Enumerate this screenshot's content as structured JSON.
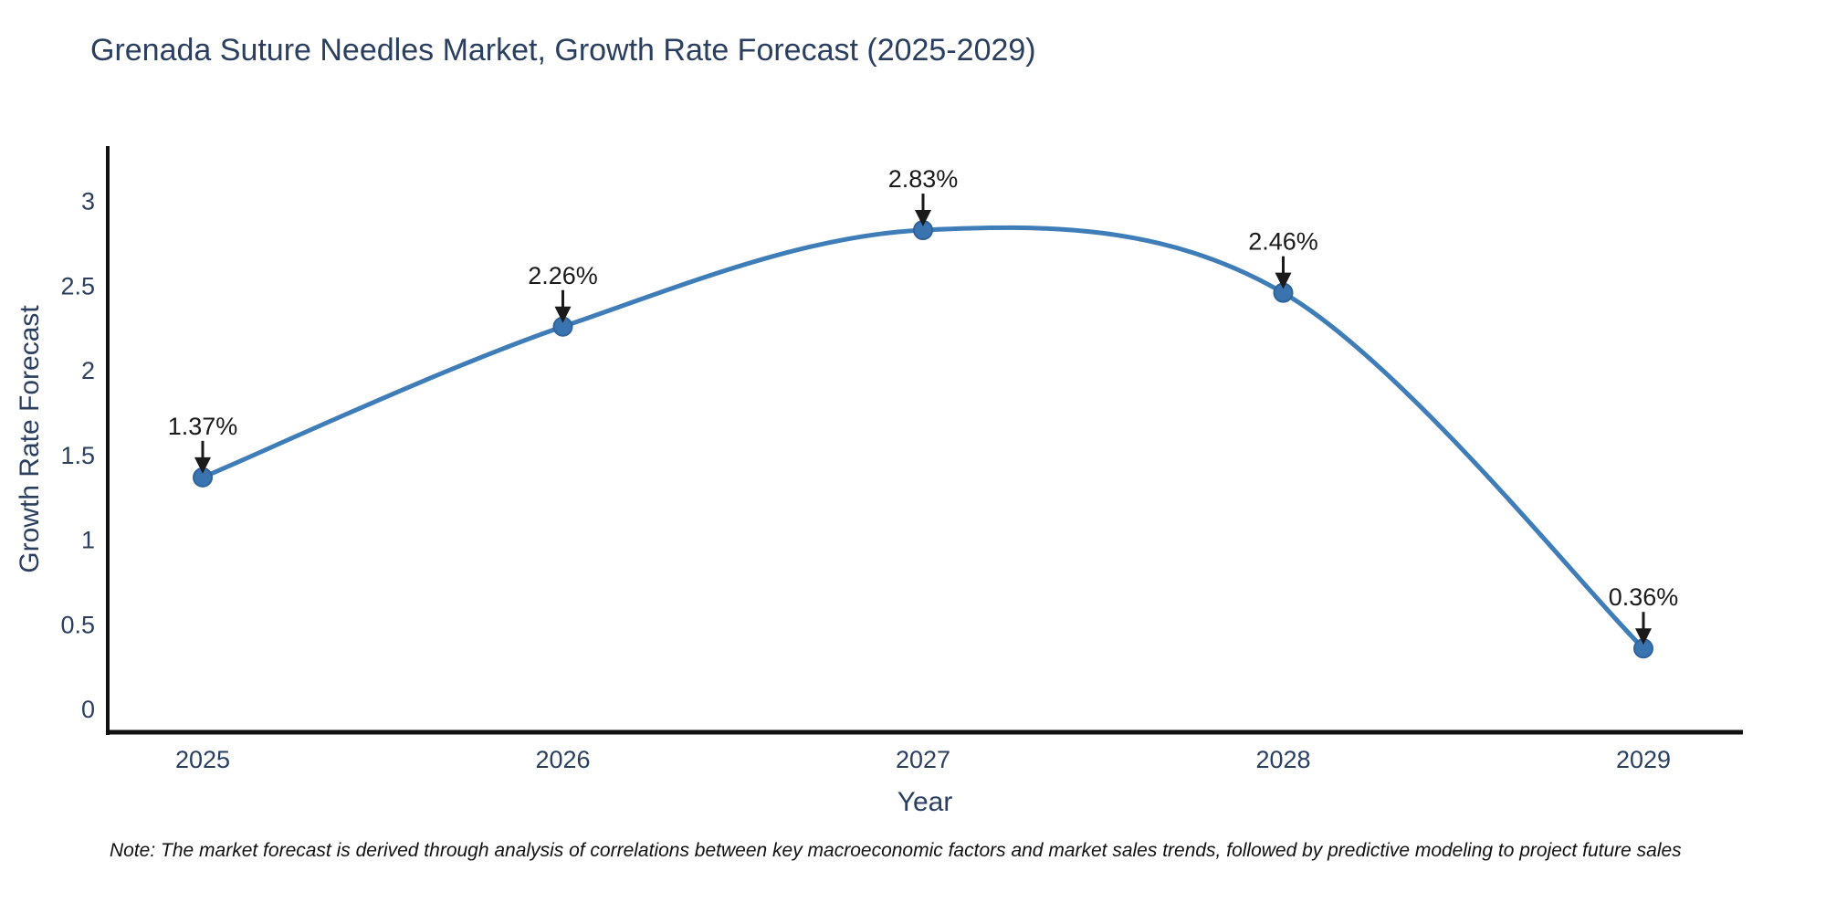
{
  "page": {
    "background": "#ffffff"
  },
  "chart_data": {
    "type": "line",
    "title": "Grenada Suture Needles Market, Growth Rate Forecast (2025-2029)",
    "xlabel": "Year",
    "ylabel": "Growth Rate Forecast",
    "x": [
      2025,
      2026,
      2027,
      2028,
      2029
    ],
    "values": [
      1.37,
      2.26,
      2.83,
      2.46,
      0.36
    ],
    "point_labels": [
      "1.37%",
      "2.26%",
      "2.83%",
      "2.46%",
      "0.36%"
    ],
    "ytick_values": [
      0,
      0.5,
      1,
      1.5,
      2,
      2.5,
      3
    ],
    "ytick_labels": [
      "0",
      "0.5",
      "1",
      "1.5",
      "2",
      "2.5",
      "3"
    ],
    "xtick_labels": [
      "2025",
      "2026",
      "2027",
      "2028",
      "2029"
    ],
    "ylim": [
      -0.14,
      3.33
    ],
    "line_shape": "spline",
    "grid": false,
    "legend": "none",
    "colors": {
      "line": "#3f7db8",
      "marker": "#3a74b0",
      "marker_edge": "#2f6399",
      "axis": "#111111",
      "tick_text": "#2a3f5f",
      "annotation": "#1a1a1a"
    }
  },
  "note": {
    "text": "Note: The market forecast is derived through analysis of correlations between key macroeconomic factors and market sales trends, followed by predictive modeling to project future sales"
  }
}
